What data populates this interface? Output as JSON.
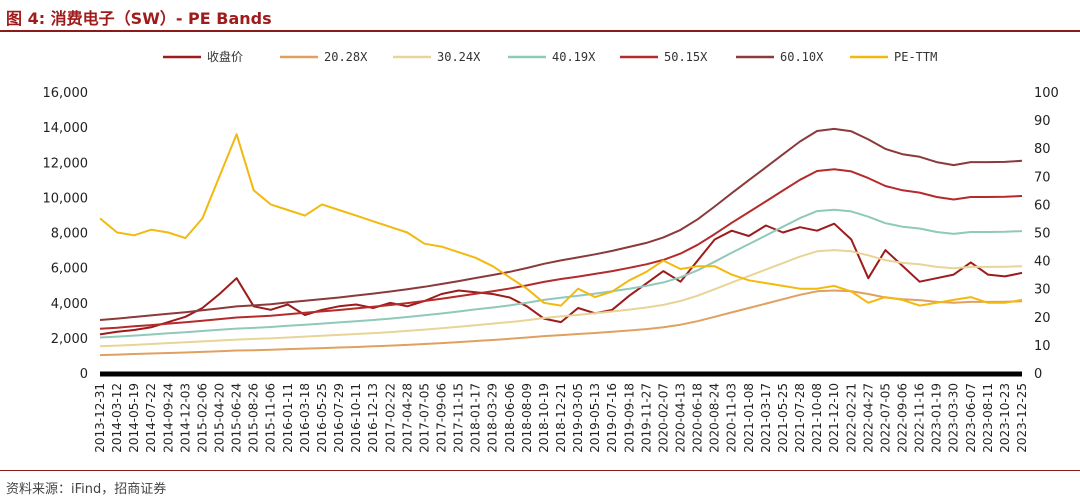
{
  "figure": {
    "title": "图 4:  消费电子（SW）- PE Bands",
    "source": "资料来源：iFind，招商证券"
  },
  "chart_data": {
    "type": "line",
    "title": "图 4:  消费电子（SW）- PE Bands",
    "y_left": {
      "ticks": [
        "0",
        "2,000",
        "4,000",
        "6,000",
        "8,000",
        "10,000",
        "12,000",
        "14,000",
        "16,000"
      ],
      "range": [
        0,
        16000
      ]
    },
    "y_right": {
      "ticks": [
        "0",
        "10",
        "20",
        "30",
        "40",
        "50",
        "60",
        "70",
        "80",
        "90",
        "100"
      ],
      "range": [
        0,
        100
      ]
    },
    "x_labels": [
      "2013-12-31",
      "2014-03-12",
      "2014-05-19",
      "2014-07-22",
      "2014-09-24",
      "2014-12-03",
      "2015-02-06",
      "2015-04-20",
      "2015-06-24",
      "2015-08-26",
      "2015-11-06",
      "2016-01-11",
      "2016-03-18",
      "2016-05-25",
      "2016-07-29",
      "2016-10-11",
      "2016-12-13",
      "2017-02-22",
      "2017-04-28",
      "2017-07-05",
      "2017-09-06",
      "2017-11-15",
      "2018-01-17",
      "2018-03-29",
      "2018-06-06",
      "2018-08-09",
      "2018-10-19",
      "2018-12-21",
      "2019-03-05",
      "2019-05-13",
      "2019-07-16",
      "2019-09-18",
      "2019-11-27",
      "2020-02-07",
      "2020-04-13",
      "2020-06-18",
      "2020-08-24",
      "2020-11-03",
      "2021-01-08",
      "2021-03-17",
      "2021-05-25",
      "2021-07-28",
      "2021-10-08",
      "2021-12-10",
      "2022-02-21",
      "2022-04-27",
      "2022-07-05",
      "2022-09-06",
      "2022-11-16",
      "2023-01-19",
      "2023-03-30",
      "2023-06-07",
      "2023-08-11",
      "2023-10-23",
      "2023-12-25"
    ],
    "series": [
      {
        "name": "收盘价",
        "axis": "left",
        "color": "#9c1b1b",
        "values": [
          2200,
          2350,
          2450,
          2600,
          2900,
          3200,
          3700,
          4500,
          5400,
          3800,
          3600,
          3900,
          3300,
          3600,
          3800,
          3900,
          3700,
          4000,
          3800,
          4100,
          4500,
          4700,
          4600,
          4500,
          4300,
          3800,
          3100,
          2900,
          3700,
          3400,
          3600,
          4400,
          5100,
          5800,
          5200,
          6400,
          7600,
          8100,
          7800,
          8400,
          8000,
          8300,
          8100,
          8500,
          7600,
          5400,
          7000,
          6100,
          5200,
          5400,
          5600,
          6300,
          5600,
          5500,
          5700
        ]
      },
      {
        "name": "20.28X",
        "axis": "left",
        "color": "#e0a060",
        "values": [
          1020,
          1050,
          1080,
          1110,
          1140,
          1170,
          1200,
          1240,
          1280,
          1300,
          1320,
          1360,
          1390,
          1420,
          1450,
          1480,
          1520,
          1560,
          1600,
          1650,
          1700,
          1760,
          1820,
          1880,
          1950,
          2020,
          2100,
          2160,
          2220,
          2280,
          2350,
          2420,
          2500,
          2600,
          2750,
          2950,
          3200,
          3450,
          3700,
          3950,
          4200,
          4450,
          4650,
          4700,
          4650,
          4500,
          4300,
          4200,
          4150,
          4050,
          4000,
          4050,
          4050,
          4060,
          4080
        ]
      },
      {
        "name": "30.24X",
        "axis": "left",
        "color": "#e8d496",
        "values": [
          1520,
          1560,
          1600,
          1650,
          1700,
          1750,
          1800,
          1850,
          1900,
          1940,
          1970,
          2020,
          2070,
          2120,
          2170,
          2220,
          2270,
          2330,
          2400,
          2470,
          2550,
          2630,
          2720,
          2810,
          2900,
          3000,
          3130,
          3220,
          3310,
          3400,
          3500,
          3610,
          3730,
          3880,
          4100,
          4400,
          4770,
          5150,
          5520,
          5890,
          6260,
          6630,
          6930,
          7000,
          6930,
          6700,
          6420,
          6270,
          6190,
          6040,
          5960,
          6040,
          6040,
          6050,
          6080
        ]
      },
      {
        "name": "40.19X",
        "axis": "left",
        "color": "#8fc9b9",
        "values": [
          2020,
          2070,
          2130,
          2190,
          2260,
          2320,
          2390,
          2460,
          2530,
          2570,
          2620,
          2690,
          2750,
          2810,
          2880,
          2950,
          3020,
          3100,
          3190,
          3290,
          3390,
          3500,
          3620,
          3730,
          3850,
          4000,
          4160,
          4280,
          4400,
          4520,
          4650,
          4800,
          4960,
          5160,
          5450,
          5850,
          6340,
          6850,
          7340,
          7830,
          8330,
          8820,
          9220,
          9300,
          9200,
          8900,
          8530,
          8330,
          8230,
          8030,
          7920,
          8030,
          8030,
          8040,
          8080
        ]
      },
      {
        "name": "50.15X",
        "axis": "left",
        "color": "#b52a2a",
        "values": [
          2520,
          2580,
          2660,
          2730,
          2810,
          2890,
          2980,
          3070,
          3160,
          3210,
          3260,
          3350,
          3430,
          3510,
          3590,
          3680,
          3770,
          3870,
          3980,
          4100,
          4230,
          4370,
          4510,
          4660,
          4810,
          4990,
          5190,
          5350,
          5490,
          5640,
          5800,
          5990,
          6190,
          6440,
          6800,
          7300,
          7910,
          8550,
          9160,
          9770,
          10390,
          11000,
          11500,
          11600,
          11480,
          11100,
          10650,
          10400,
          10270,
          10020,
          9880,
          10020,
          10020,
          10030,
          10080
        ]
      },
      {
        "name": "60.10X",
        "axis": "left",
        "color": "#8b3a3a",
        "values": [
          3020,
          3100,
          3190,
          3280,
          3370,
          3460,
          3570,
          3680,
          3790,
          3850,
          3910,
          4020,
          4110,
          4210,
          4300,
          4410,
          4520,
          4640,
          4770,
          4910,
          5070,
          5230,
          5410,
          5580,
          5760,
          5980,
          6220,
          6410,
          6580,
          6760,
          6950,
          7180,
          7410,
          7720,
          8150,
          8750,
          9480,
          10240,
          10980,
          11710,
          12450,
          13180,
          13780,
          13900,
          13760,
          13300,
          12760,
          12460,
          12310,
          12010,
          11840,
          12010,
          12010,
          12020,
          12080
        ]
      },
      {
        "name": "PE-TTM",
        "axis": "right",
        "color": "#f2b90f",
        "values": [
          55,
          50,
          49,
          51,
          50,
          48,
          55,
          70,
          85,
          65,
          60,
          58,
          56,
          60,
          58,
          56,
          54,
          52,
          50,
          46,
          45,
          43,
          41,
          38,
          34,
          30,
          25,
          24,
          30,
          27,
          29,
          33,
          36,
          40,
          37,
          38,
          38,
          35,
          33,
          32,
          31,
          30,
          30,
          31,
          29,
          25,
          27,
          26,
          24,
          25,
          26,
          27,
          25,
          25,
          26
        ]
      }
    ],
    "legend": [
      "收盘价",
      "20.28X",
      "30.24X",
      "40.19X",
      "50.15X",
      "60.10X",
      "PE-TTM"
    ],
    "legend_position": "top"
  }
}
